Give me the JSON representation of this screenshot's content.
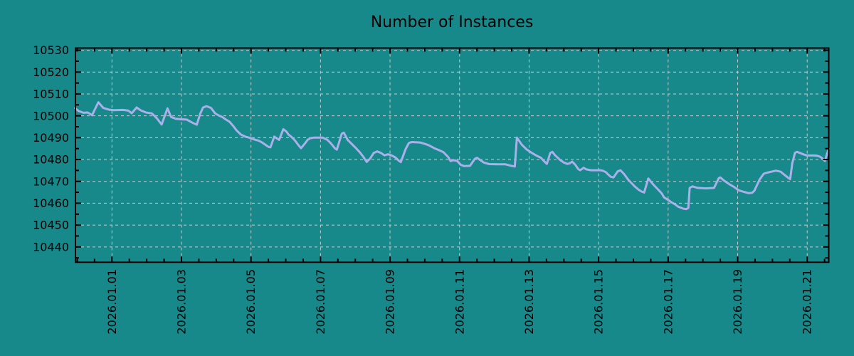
{
  "title": "Number of Instances",
  "colors": {
    "background": "#17898b",
    "axis": "#000000",
    "grid": "#c9c9c9",
    "line": "#aab0ea",
    "text": "#000000"
  },
  "chart_data": {
    "type": "line",
    "title": "Number of Instances",
    "xlabel": "",
    "ylabel": "",
    "legend": "none",
    "grid": "dashed major",
    "x_unit": "days (1.0 = 2026.01.01 00:00)",
    "xlim": [
      -0.05,
      21.62
    ],
    "ylim": [
      10433,
      10531
    ],
    "y_major_ticks": [
      10440,
      10450,
      10460,
      10470,
      10480,
      10490,
      10500,
      10510,
      10520,
      10530
    ],
    "y_minor_step": 5,
    "x_minor_step": 0.5,
    "x_major_ticks": [
      {
        "value": 1,
        "label": "2026.01.01"
      },
      {
        "value": 3,
        "label": "2026.01.03"
      },
      {
        "value": 5,
        "label": "2026.01.05"
      },
      {
        "value": 7,
        "label": "2026.01.07"
      },
      {
        "value": 9,
        "label": "2026.01.09"
      },
      {
        "value": 11,
        "label": "2026.01.11"
      },
      {
        "value": 13,
        "label": "2026.01.13"
      },
      {
        "value": 15,
        "label": "2026.01.15"
      },
      {
        "value": 17,
        "label": "2026.01.17"
      },
      {
        "value": 19,
        "label": "2026.01.19"
      },
      {
        "value": 21,
        "label": "2026.01.21"
      }
    ],
    "series": [
      {
        "name": "Number of Instances",
        "color": "#aab0ea",
        "points": [
          [
            -0.06,
            10503.5
          ],
          [
            0.04,
            10502.2
          ],
          [
            0.18,
            10501.4
          ],
          [
            0.3,
            10501.5
          ],
          [
            0.43,
            10500.3
          ],
          [
            0.61,
            10506.2
          ],
          [
            0.75,
            10503.6
          ],
          [
            0.92,
            10502.8
          ],
          [
            1.06,
            10502.6
          ],
          [
            1.31,
            10502.7
          ],
          [
            1.47,
            10502.4
          ],
          [
            1.57,
            10501.2
          ],
          [
            1.71,
            10503.8
          ],
          [
            1.82,
            10502.6
          ],
          [
            1.98,
            10501.5
          ],
          [
            2.15,
            10501.1
          ],
          [
            2.29,
            10498.9
          ],
          [
            2.43,
            10496.0
          ],
          [
            2.6,
            10503.4
          ],
          [
            2.7,
            10499.5
          ],
          [
            2.84,
            10498.6
          ],
          [
            3.01,
            10498.4
          ],
          [
            3.15,
            10498.3
          ],
          [
            3.31,
            10496.9
          ],
          [
            3.44,
            10495.9
          ],
          [
            3.54,
            10501.0
          ],
          [
            3.62,
            10503.8
          ],
          [
            3.72,
            10504.4
          ],
          [
            3.85,
            10503.6
          ],
          [
            3.97,
            10501.1
          ],
          [
            4.07,
            10500.2
          ],
          [
            4.17,
            10499.5
          ],
          [
            4.27,
            10498.4
          ],
          [
            4.38,
            10497.3
          ],
          [
            4.5,
            10495.1
          ],
          [
            4.58,
            10493.4
          ],
          [
            4.71,
            10491.4
          ],
          [
            4.85,
            10490.4
          ],
          [
            4.95,
            10490.0
          ],
          [
            5.11,
            10489.1
          ],
          [
            5.22,
            10488.6
          ],
          [
            5.32,
            10487.8
          ],
          [
            5.42,
            10486.7
          ],
          [
            5.5,
            10485.8
          ],
          [
            5.56,
            10485.6
          ],
          [
            5.67,
            10490.5
          ],
          [
            5.75,
            10489.6
          ],
          [
            5.81,
            10489.0
          ],
          [
            5.93,
            10493.9
          ],
          [
            6.02,
            10492.8
          ],
          [
            6.08,
            10491.4
          ],
          [
            6.16,
            10490.4
          ],
          [
            6.22,
            10489.5
          ],
          [
            6.28,
            10488.4
          ],
          [
            6.36,
            10486.7
          ],
          [
            6.44,
            10485.2
          ],
          [
            6.55,
            10487.3
          ],
          [
            6.63,
            10489.0
          ],
          [
            6.71,
            10489.8
          ],
          [
            6.81,
            10490.0
          ],
          [
            7.06,
            10490.0
          ],
          [
            7.2,
            10489.0
          ],
          [
            7.3,
            10487.4
          ],
          [
            7.41,
            10485.2
          ],
          [
            7.47,
            10484.5
          ],
          [
            7.61,
            10491.8
          ],
          [
            7.67,
            10492.3
          ],
          [
            7.78,
            10489.0
          ],
          [
            7.88,
            10487.4
          ],
          [
            8.02,
            10485.2
          ],
          [
            8.12,
            10483.5
          ],
          [
            8.23,
            10481.3
          ],
          [
            8.33,
            10478.9
          ],
          [
            8.43,
            10480.5
          ],
          [
            8.53,
            10483.0
          ],
          [
            8.63,
            10483.7
          ],
          [
            8.74,
            10483.0
          ],
          [
            8.84,
            10481.9
          ],
          [
            8.94,
            10482.4
          ],
          [
            9.04,
            10481.9
          ],
          [
            9.15,
            10481.0
          ],
          [
            9.25,
            10479.5
          ],
          [
            9.31,
            10478.8
          ],
          [
            9.45,
            10484.8
          ],
          [
            9.54,
            10487.5
          ],
          [
            9.62,
            10488.0
          ],
          [
            9.86,
            10487.8
          ],
          [
            10.01,
            10487.1
          ],
          [
            10.13,
            10486.4
          ],
          [
            10.27,
            10485.2
          ],
          [
            10.42,
            10484.2
          ],
          [
            10.54,
            10483.3
          ],
          [
            10.68,
            10481.0
          ],
          [
            10.74,
            10479.3
          ],
          [
            10.82,
            10479.7
          ],
          [
            10.93,
            10479.4
          ],
          [
            11.03,
            10477.6
          ],
          [
            11.13,
            10477.0
          ],
          [
            11.3,
            10477.1
          ],
          [
            11.44,
            10480.3
          ],
          [
            11.5,
            10480.8
          ],
          [
            11.6,
            10479.7
          ],
          [
            11.7,
            10478.6
          ],
          [
            11.85,
            10477.9
          ],
          [
            12.11,
            10477.8
          ],
          [
            12.32,
            10477.8
          ],
          [
            12.46,
            10477.2
          ],
          [
            12.59,
            10476.8
          ],
          [
            12.65,
            10490.0
          ],
          [
            12.79,
            10486.8
          ],
          [
            12.93,
            10484.6
          ],
          [
            13.08,
            10483.0
          ],
          [
            13.2,
            10481.9
          ],
          [
            13.34,
            10480.8
          ],
          [
            13.44,
            10479.1
          ],
          [
            13.51,
            10478.0
          ],
          [
            13.61,
            10483.0
          ],
          [
            13.67,
            10483.5
          ],
          [
            13.75,
            10481.9
          ],
          [
            13.9,
            10479.7
          ],
          [
            14.0,
            10478.6
          ],
          [
            14.1,
            10478.0
          ],
          [
            14.16,
            10478.2
          ],
          [
            14.24,
            10479.0
          ],
          [
            14.33,
            10477.6
          ],
          [
            14.41,
            10475.7
          ],
          [
            14.47,
            10475.1
          ],
          [
            14.57,
            10476.2
          ],
          [
            14.65,
            10475.5
          ],
          [
            14.78,
            10475.1
          ],
          [
            15.04,
            10475.1
          ],
          [
            15.12,
            10474.9
          ],
          [
            15.21,
            10474.2
          ],
          [
            15.27,
            10473.2
          ],
          [
            15.35,
            10472.1
          ],
          [
            15.43,
            10471.8
          ],
          [
            15.55,
            10474.6
          ],
          [
            15.63,
            10475.1
          ],
          [
            15.74,
            10473.2
          ],
          [
            15.84,
            10471.0
          ],
          [
            15.94,
            10469.3
          ],
          [
            16.04,
            10467.7
          ],
          [
            16.15,
            10466.2
          ],
          [
            16.23,
            10465.4
          ],
          [
            16.31,
            10464.9
          ],
          [
            16.43,
            10471.3
          ],
          [
            16.56,
            10468.8
          ],
          [
            16.66,
            10467.1
          ],
          [
            16.74,
            10465.8
          ],
          [
            16.82,
            10464.4
          ],
          [
            16.88,
            10462.7
          ],
          [
            16.99,
            10461.6
          ],
          [
            17.09,
            10460.5
          ],
          [
            17.19,
            10459.6
          ],
          [
            17.29,
            10458.4
          ],
          [
            17.44,
            10457.5
          ],
          [
            17.52,
            10457.3
          ],
          [
            17.58,
            10457.8
          ],
          [
            17.62,
            10467.0
          ],
          [
            17.7,
            10467.7
          ],
          [
            17.85,
            10467.0
          ],
          [
            18.09,
            10466.8
          ],
          [
            18.32,
            10467.0
          ],
          [
            18.46,
            10471.5
          ],
          [
            18.5,
            10471.8
          ],
          [
            18.62,
            10470.2
          ],
          [
            18.77,
            10468.6
          ],
          [
            18.91,
            10467.3
          ],
          [
            19.03,
            10465.9
          ],
          [
            19.18,
            10465.2
          ],
          [
            19.32,
            10464.6
          ],
          [
            19.42,
            10464.8
          ],
          [
            19.48,
            10465.7
          ],
          [
            19.63,
            10470.8
          ],
          [
            19.75,
            10473.5
          ],
          [
            19.85,
            10474.0
          ],
          [
            20.1,
            10474.9
          ],
          [
            20.24,
            10474.4
          ],
          [
            20.3,
            10473.6
          ],
          [
            20.38,
            10472.6
          ],
          [
            20.44,
            10471.8
          ],
          [
            20.51,
            10471.0
          ],
          [
            20.57,
            10478.2
          ],
          [
            20.65,
            10483.1
          ],
          [
            20.71,
            10483.5
          ],
          [
            20.79,
            10483.0
          ],
          [
            20.87,
            10482.5
          ],
          [
            20.98,
            10481.9
          ],
          [
            21.26,
            10481.8
          ],
          [
            21.35,
            10481.4
          ],
          [
            21.41,
            10480.9
          ],
          [
            21.47,
            10479.9
          ],
          [
            21.51,
            10479.3
          ],
          [
            21.57,
            10482.6
          ],
          [
            21.62,
            10485.0
          ]
        ]
      }
    ]
  }
}
